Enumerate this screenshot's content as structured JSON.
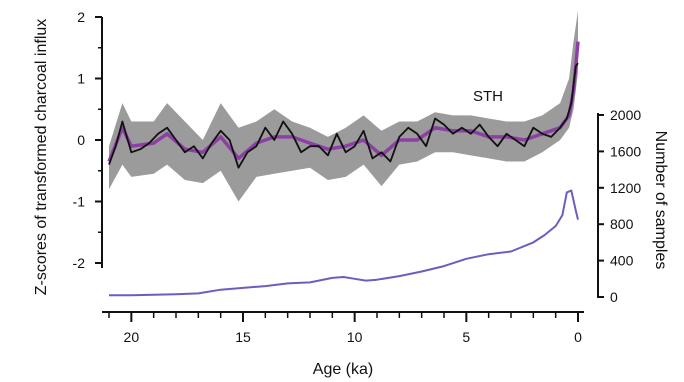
{
  "chart_data": {
    "type": "line",
    "annotation": "STH",
    "xlabel": "Age (ka)",
    "ylabel_left": "Z-scores of transformed charcoal influx",
    "ylabel_right": "Number of samples",
    "xlim": [
      21,
      0
    ],
    "ylim_left": [
      -2.5,
      2
    ],
    "ylim_right": [
      0,
      2000
    ],
    "x_ticks": [
      20,
      15,
      10,
      5,
      0
    ],
    "y_ticks_left": [
      -2,
      -1,
      0,
      1,
      2
    ],
    "y_ticks_right": [
      0,
      400,
      800,
      1200,
      1600,
      2000
    ],
    "colors": {
      "zscore": "#111111",
      "smoothed": "#8e3fa6",
      "band": "#9b9b9b",
      "samples": "#6a5fbf",
      "axis": "#111111"
    },
    "series": [
      {
        "axis": "left",
        "x": [
          21,
          20.7,
          20.4,
          20,
          19.6,
          19.2,
          18.8,
          18.4,
          18,
          17.6,
          17.2,
          16.8,
          16.4,
          16,
          15.6,
          15.2,
          14.8,
          14.4,
          14,
          13.6,
          13.2,
          12.8,
          12.4,
          12,
          11.6,
          11.2,
          10.8,
          10.4,
          10,
          9.6,
          9.2,
          8.8,
          8.4,
          8,
          7.6,
          7.2,
          6.8,
          6.4,
          6,
          5.6,
          5.2,
          4.8,
          4.4,
          4,
          3.6,
          3.2,
          2.8,
          2.4,
          2,
          1.6,
          1.2,
          0.8,
          0.5,
          0.3,
          0.1,
          0
        ],
        "values": [
          -0.4,
          -0.1,
          0.3,
          -0.2,
          -0.15,
          -0.05,
          0.1,
          0.2,
          0.0,
          -0.2,
          -0.1,
          -0.3,
          -0.05,
          0.15,
          0.0,
          -0.45,
          -0.2,
          -0.1,
          0.2,
          0.0,
          0.3,
          0.1,
          -0.2,
          -0.1,
          -0.1,
          -0.25,
          0.1,
          -0.2,
          -0.1,
          0.15,
          -0.3,
          -0.2,
          -0.35,
          0.05,
          0.2,
          0.1,
          -0.1,
          0.35,
          0.25,
          0.1,
          0.2,
          0.1,
          0.25,
          0.05,
          -0.1,
          0.1,
          0.0,
          -0.1,
          0.2,
          0.1,
          0.05,
          0.2,
          0.35,
          0.6,
          1.2,
          1.25
        ]
      },
      {
        "axis": "left",
        "x": [
          21,
          20.4,
          20,
          19,
          18.4,
          17.6,
          16.8,
          16,
          15.2,
          14.4,
          13.6,
          12.8,
          12,
          11.2,
          10.4,
          9.6,
          8.8,
          8,
          7.2,
          6.4,
          5.6,
          4.8,
          4,
          3.2,
          2.4,
          1.6,
          0.8,
          0.4,
          0.2,
          0
        ],
        "values": [
          -0.35,
          0.2,
          -0.1,
          -0.05,
          0.1,
          -0.15,
          -0.2,
          0.05,
          -0.3,
          -0.05,
          0.05,
          0.05,
          -0.05,
          -0.15,
          -0.1,
          0.0,
          -0.25,
          0.0,
          0.0,
          0.2,
          0.15,
          0.15,
          0.05,
          0.05,
          0.0,
          0.1,
          0.2,
          0.4,
          0.8,
          1.6
        ]
      },
      {
        "axis": "right",
        "x": [
          21,
          20,
          18,
          17,
          16,
          15,
          14,
          13,
          12,
          11,
          10.5,
          10,
          9.5,
          9,
          8,
          7,
          6,
          5,
          4,
          3,
          2,
          1.5,
          1,
          0.7,
          0.5,
          0.3,
          0.1,
          0
        ],
        "values": [
          20,
          20,
          30,
          40,
          80,
          100,
          120,
          150,
          160,
          210,
          220,
          200,
          180,
          190,
          230,
          280,
          340,
          420,
          470,
          500,
          600,
          680,
          780,
          900,
          1150,
          1170,
          950,
          850
        ]
      }
    ],
    "band_upper": [
      -0.1,
      0.6,
      0.3,
      0.3,
      0.6,
      0.3,
      0.0,
      0.6,
      0.2,
      0.3,
      0.5,
      0.3,
      0.2,
      0.05,
      0.2,
      0.4,
      0.15,
      0.3,
      0.3,
      0.45,
      0.4,
      0.4,
      0.35,
      0.3,
      0.3,
      0.4,
      0.6,
      1.0,
      1.6,
      2.1
    ],
    "band_lower": [
      -0.8,
      -0.4,
      -0.6,
      -0.55,
      -0.4,
      -0.65,
      -0.7,
      -0.5,
      -1.0,
      -0.6,
      -0.55,
      -0.5,
      -0.45,
      -0.65,
      -0.6,
      -0.4,
      -0.75,
      -0.4,
      -0.35,
      -0.2,
      -0.2,
      -0.25,
      -0.3,
      -0.35,
      -0.35,
      -0.2,
      0.0,
      0.2,
      0.5,
      1.1
    ]
  }
}
